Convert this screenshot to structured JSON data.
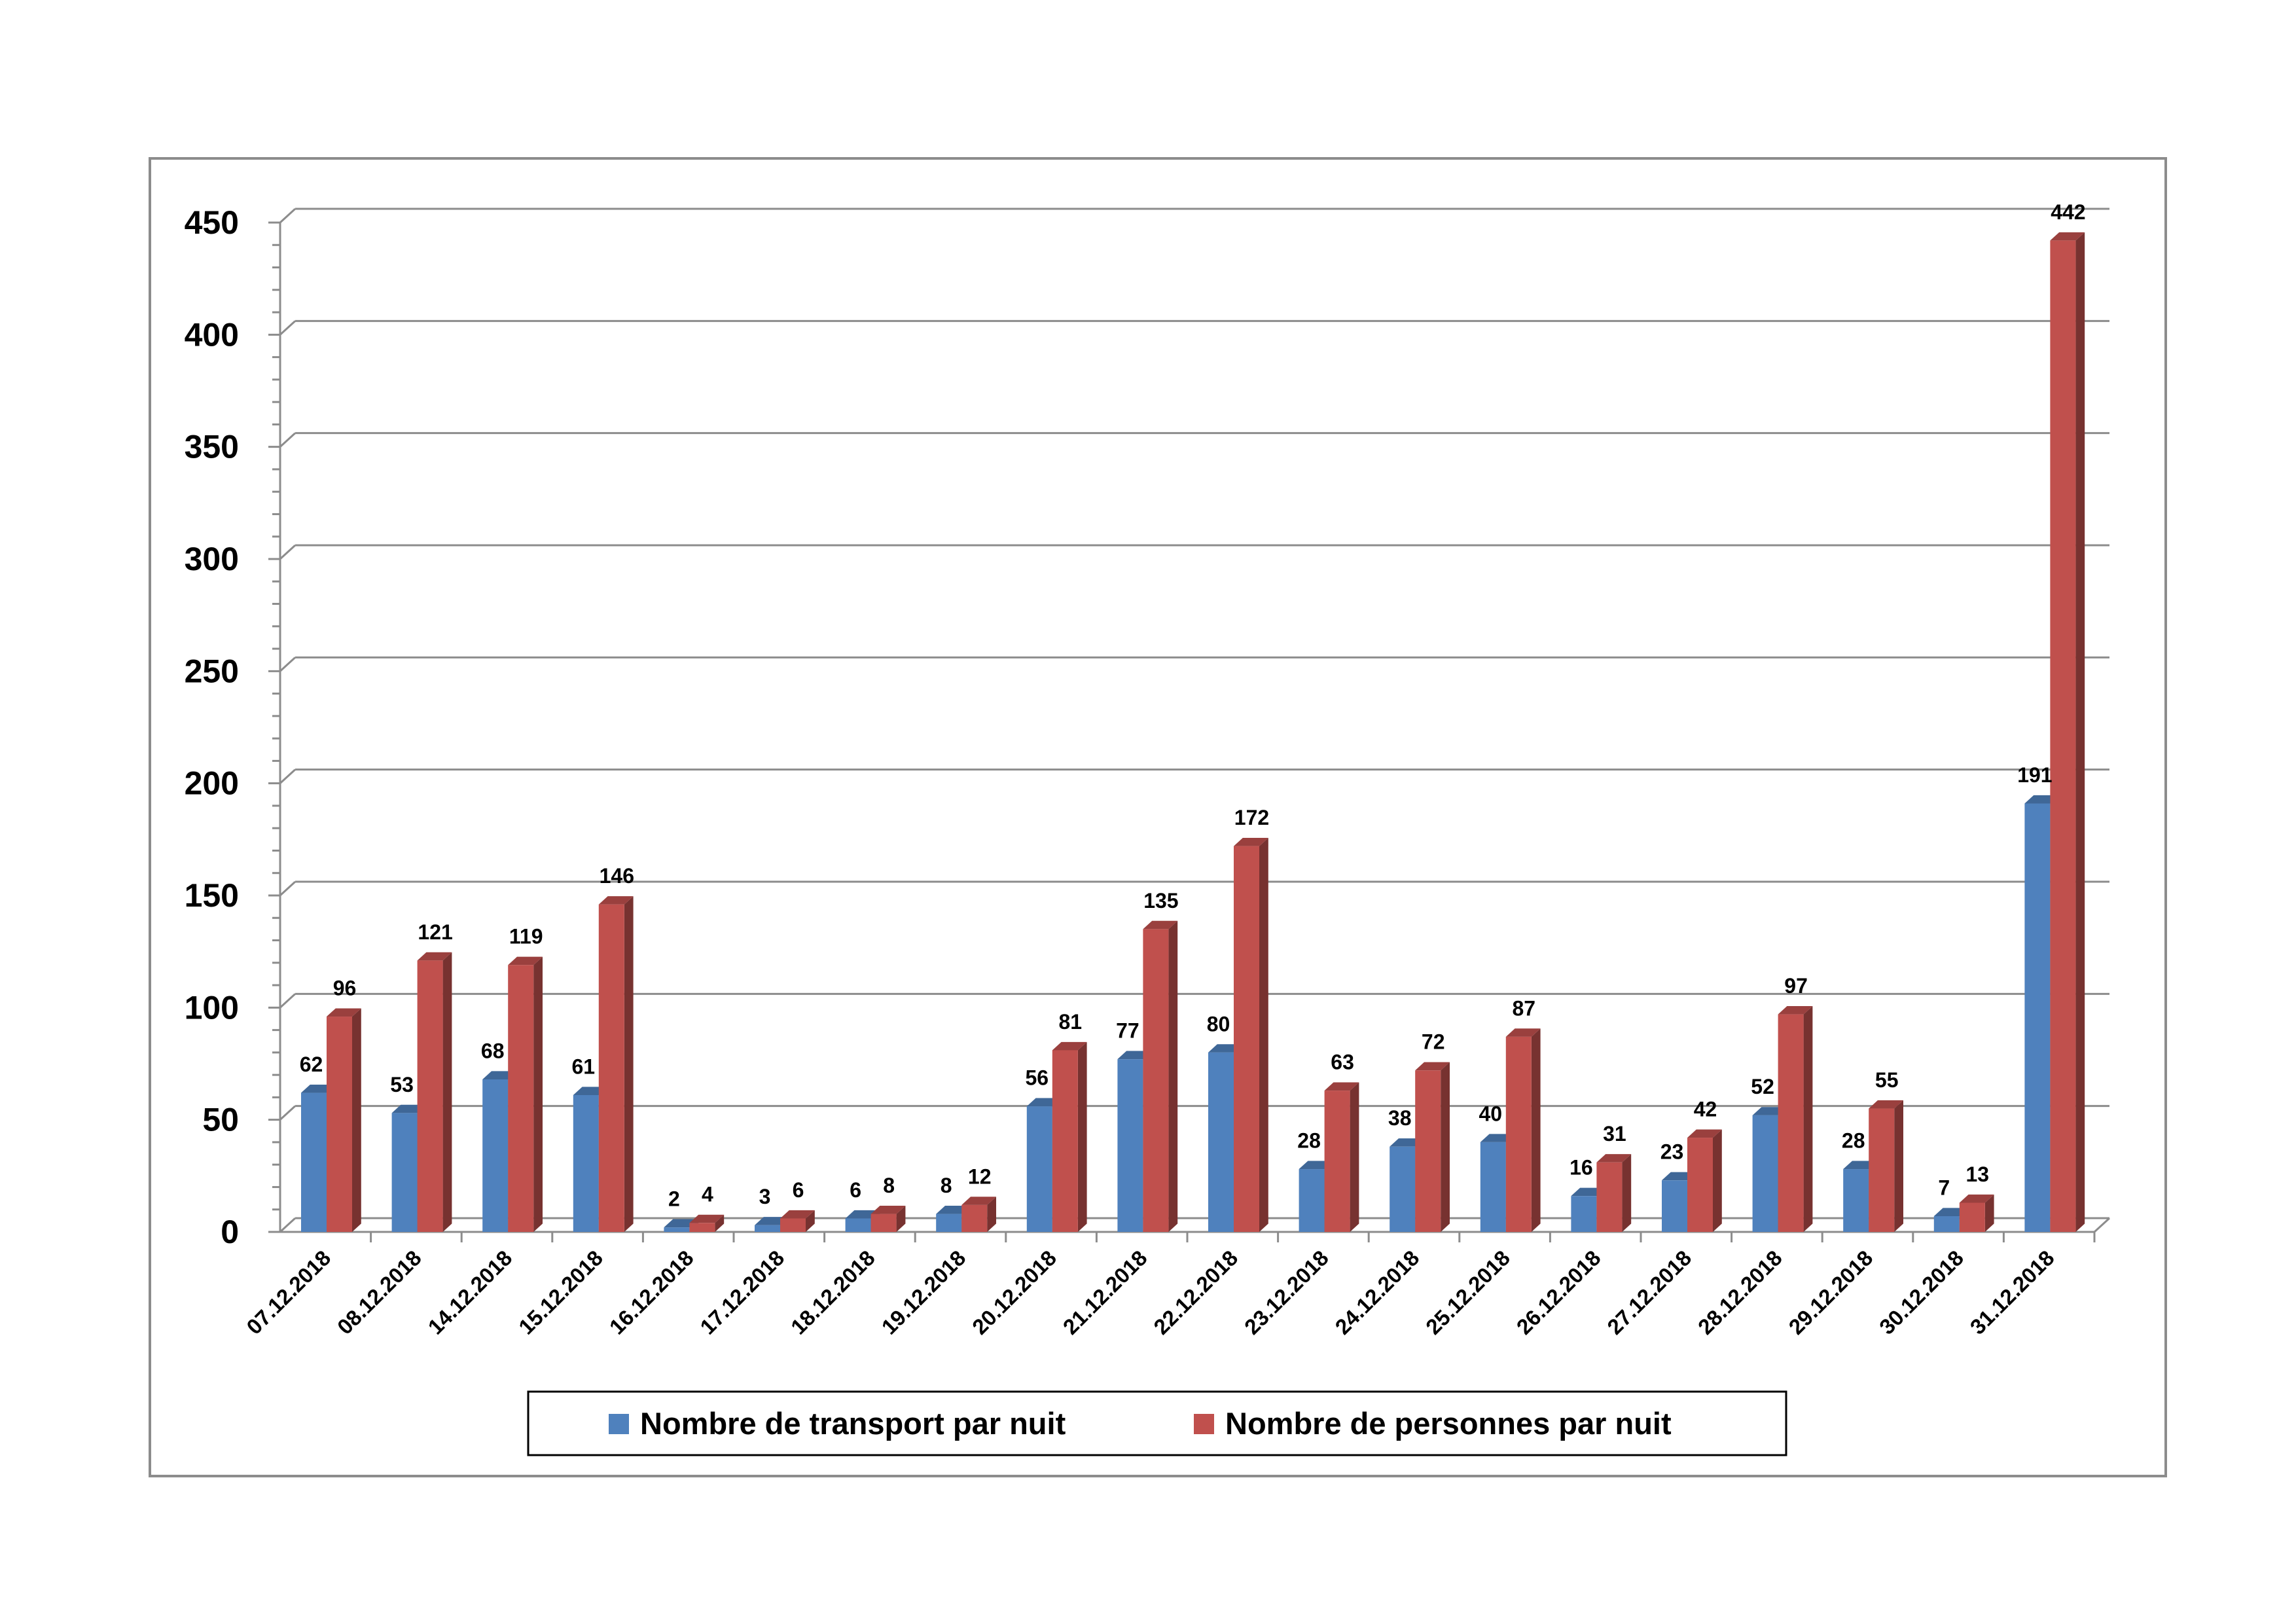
{
  "chart_data": {
    "type": "bar",
    "categories": [
      "07.12.2018",
      "08.12.2018",
      "14.12.2018",
      "15.12.2018",
      "16.12.2018",
      "17.12.2018",
      "18.12.2018",
      "19.12.2018",
      "20.12.2018",
      "21.12.2018",
      "22.12.2018",
      "23.12.2018",
      "24.12.2018",
      "25.12.2018",
      "26.12.2018",
      "27.12.2018",
      "28.12.2018",
      "29.12.2018",
      "30.12.2018",
      "31.12.2018"
    ],
    "series": [
      {
        "name": "Nombre de transport par nuit",
        "color": "#4F81BD",
        "values": [
          62,
          53,
          68,
          61,
          2,
          3,
          6,
          8,
          56,
          77,
          80,
          28,
          38,
          40,
          16,
          23,
          52,
          28,
          7,
          191
        ]
      },
      {
        "name": "Nombre de personnes par nuit",
        "color": "#C0504D",
        "values": [
          96,
          121,
          119,
          146,
          4,
          6,
          8,
          12,
          81,
          135,
          172,
          63,
          72,
          87,
          31,
          42,
          97,
          55,
          13,
          442
        ]
      }
    ],
    "ylim": [
      0,
      450
    ],
    "yticks": [
      0,
      50,
      100,
      150,
      200,
      250,
      300,
      350,
      400,
      450
    ],
    "grid": true,
    "legend": "bottom",
    "style": "3d-clustered"
  }
}
